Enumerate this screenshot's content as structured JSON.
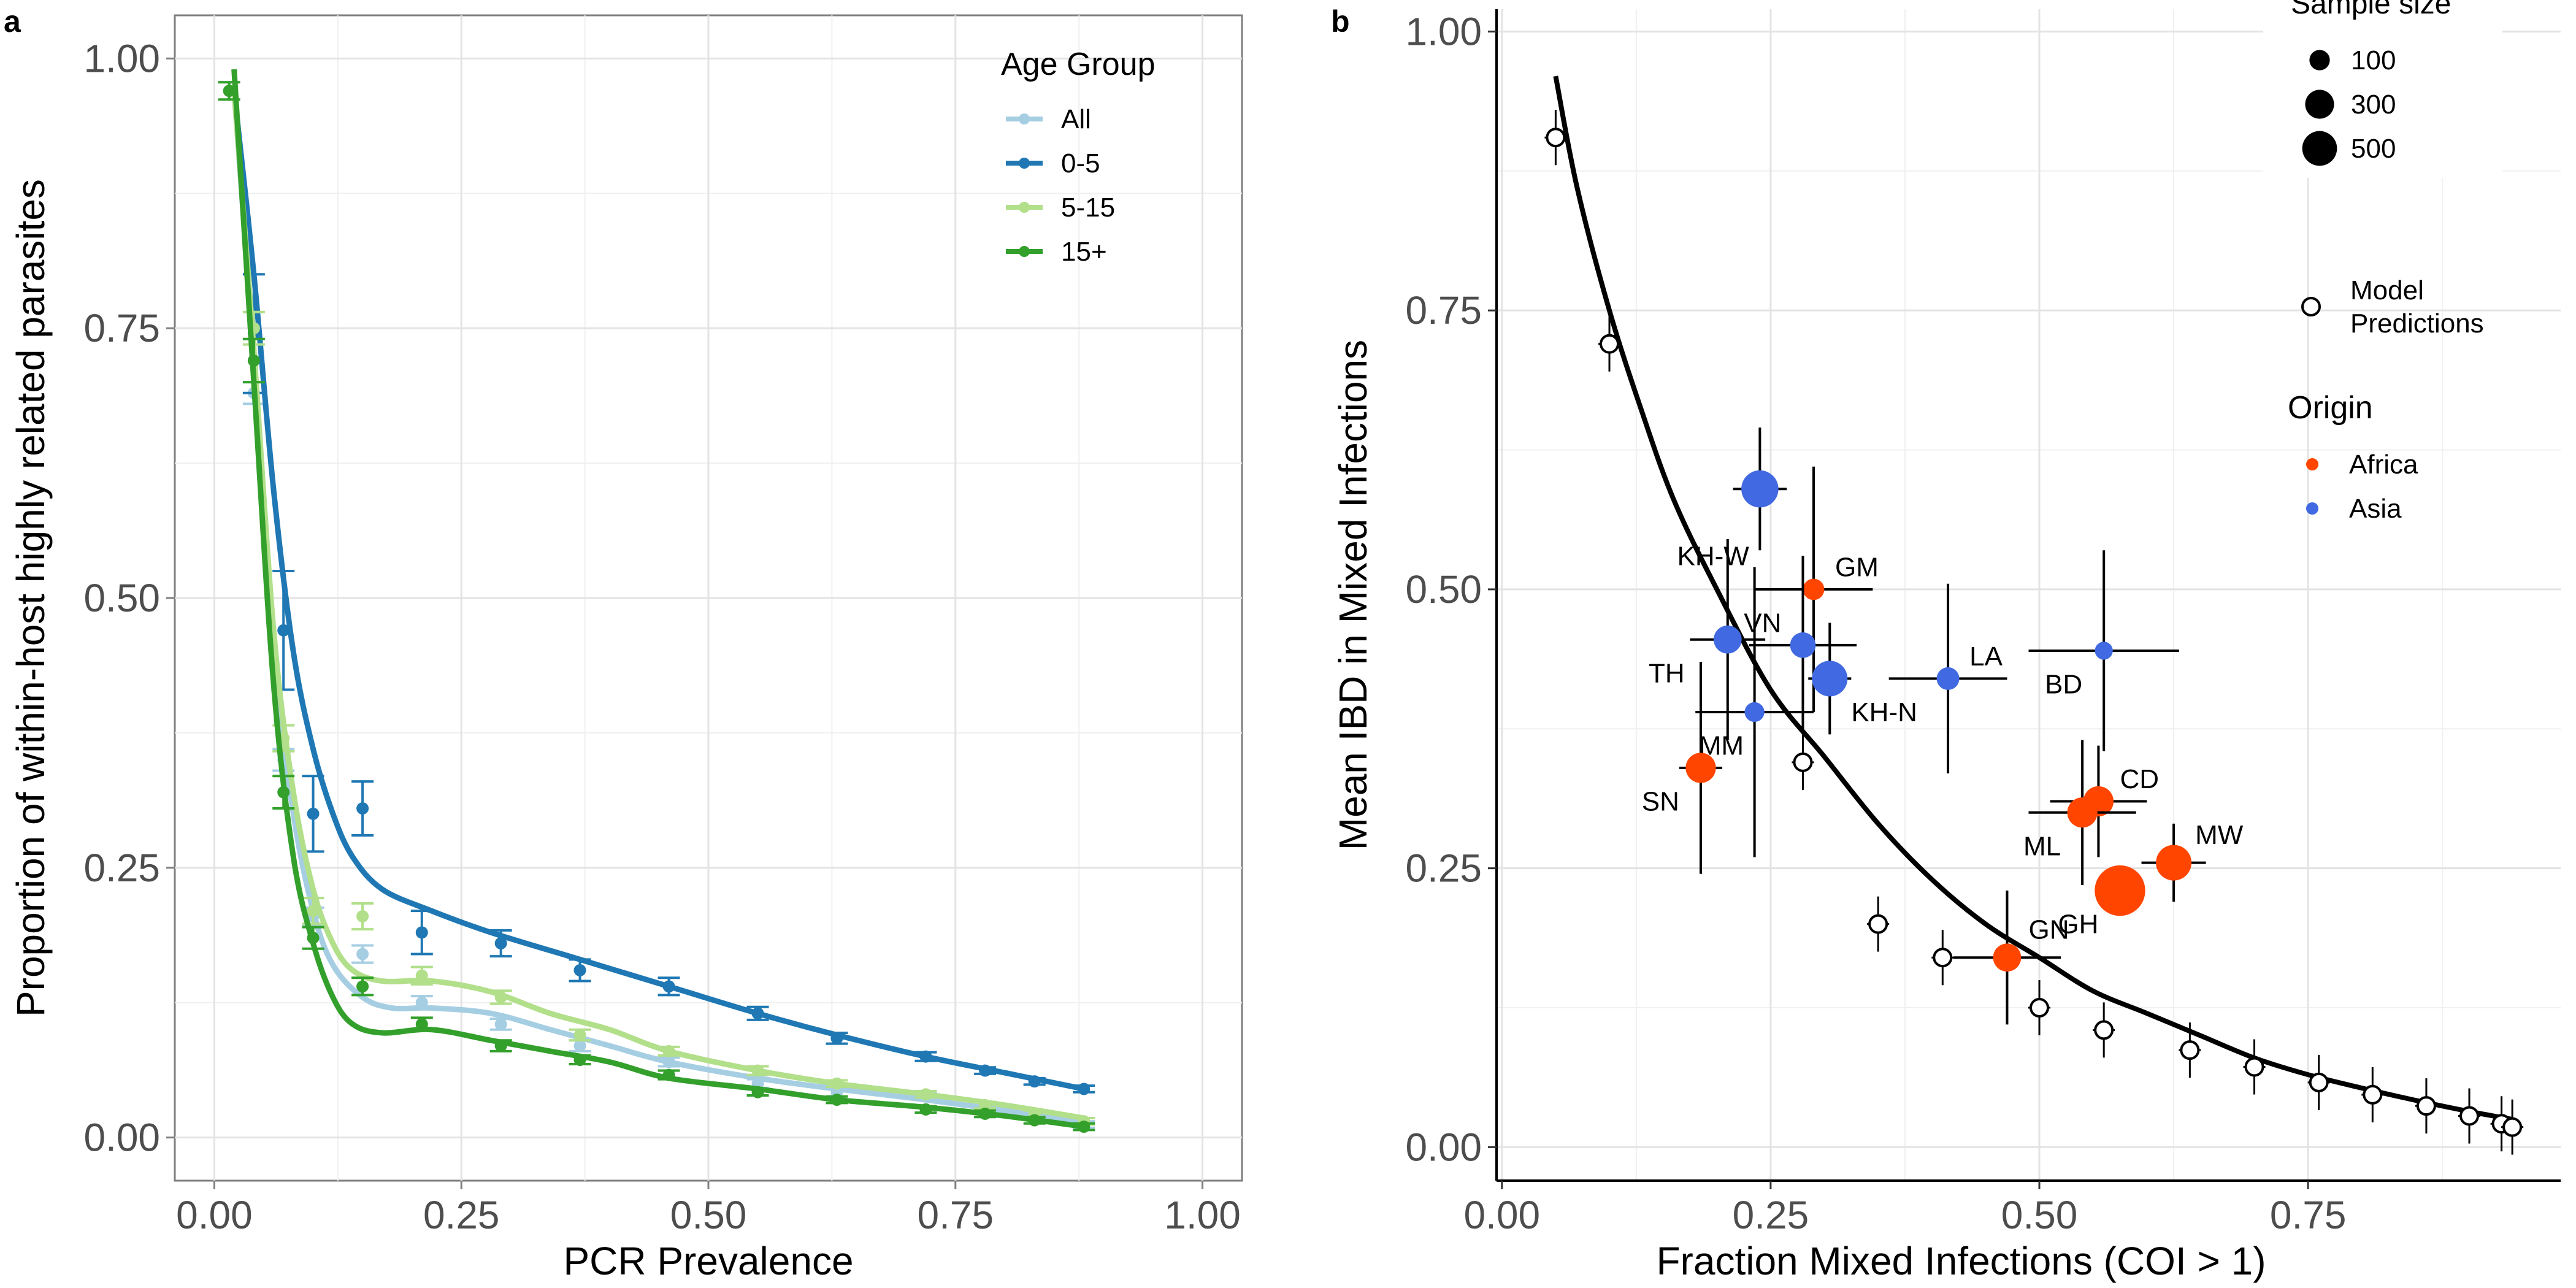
{
  "chart_data": [
    {
      "panel": "a",
      "type": "line",
      "xlabel": "PCR Prevalence",
      "ylabel": "Proportion of within-host highly related parasites",
      "xlim": [
        -0.04,
        1.04
      ],
      "ylim": [
        -0.04,
        1.04
      ],
      "xticks": [
        0,
        0.25,
        0.5,
        0.75,
        1
      ],
      "yticks": [
        0,
        0.25,
        0.5,
        0.75,
        1
      ],
      "xtick_labels": [
        "0.00",
        "0.25",
        "0.50",
        "0.75",
        "1.00"
      ],
      "ytick_labels": [
        "0.00",
        "0.25",
        "0.50",
        "0.75",
        "1.00"
      ],
      "grid": true,
      "legend": {
        "title": "Age Group",
        "position": "top-right"
      },
      "series": [
        {
          "name": "All",
          "color": "#a6cee3",
          "curve": [
            [
              0.02,
              0.97
            ],
            [
              0.04,
              0.72
            ],
            [
              0.06,
              0.45
            ],
            [
              0.08,
              0.3
            ],
            [
              0.1,
              0.21
            ],
            [
              0.12,
              0.16
            ],
            [
              0.15,
              0.13
            ],
            [
              0.18,
              0.12
            ],
            [
              0.22,
              0.12
            ],
            [
              0.28,
              0.115
            ],
            [
              0.34,
              0.1
            ],
            [
              0.4,
              0.085
            ],
            [
              0.46,
              0.07
            ],
            [
              0.55,
              0.055
            ],
            [
              0.63,
              0.045
            ],
            [
              0.72,
              0.035
            ],
            [
              0.8,
              0.025
            ],
            [
              0.88,
              0.015
            ]
          ],
          "points": [
            [
              0.04,
              0.69,
              0.01
            ],
            [
              0.07,
              0.35,
              0.01
            ],
            [
              0.1,
              0.205,
              0.008
            ],
            [
              0.15,
              0.17,
              0.008
            ],
            [
              0.21,
              0.125,
              0.006
            ],
            [
              0.29,
              0.105,
              0.005
            ],
            [
              0.37,
              0.085,
              0.005
            ],
            [
              0.46,
              0.07,
              0.004
            ],
            [
              0.55,
              0.05,
              0.004
            ],
            [
              0.63,
              0.042,
              0.004
            ],
            [
              0.72,
              0.038,
              0.003
            ],
            [
              0.78,
              0.026,
              0.003
            ],
            [
              0.83,
              0.02,
              0.003
            ],
            [
              0.88,
              0.012,
              0.003
            ]
          ]
        },
        {
          "name": "0-5",
          "color": "#1f78b4",
          "curve": [
            [
              0.02,
              0.97
            ],
            [
              0.04,
              0.8
            ],
            [
              0.06,
              0.6
            ],
            [
              0.08,
              0.45
            ],
            [
              0.1,
              0.36
            ],
            [
              0.12,
              0.3
            ],
            [
              0.14,
              0.26
            ],
            [
              0.17,
              0.23
            ],
            [
              0.22,
              0.21
            ],
            [
              0.28,
              0.19
            ],
            [
              0.37,
              0.165
            ],
            [
              0.46,
              0.14
            ],
            [
              0.55,
              0.115
            ],
            [
              0.63,
              0.095
            ],
            [
              0.72,
              0.075
            ],
            [
              0.8,
              0.06
            ],
            [
              0.88,
              0.045
            ]
          ],
          "points": [
            [
              0.04,
              0.745,
              0.055
            ],
            [
              0.07,
              0.47,
              0.055
            ],
            [
              0.1,
              0.3,
              0.035
            ],
            [
              0.15,
              0.305,
              0.025
            ],
            [
              0.21,
              0.19,
              0.02
            ],
            [
              0.29,
              0.18,
              0.012
            ],
            [
              0.37,
              0.155,
              0.01
            ],
            [
              0.46,
              0.14,
              0.008
            ],
            [
              0.55,
              0.115,
              0.006
            ],
            [
              0.63,
              0.092,
              0.005
            ],
            [
              0.72,
              0.075,
              0.004
            ],
            [
              0.78,
              0.062,
              0.003
            ],
            [
              0.83,
              0.052,
              0.003
            ],
            [
              0.88,
              0.045,
              0.003
            ]
          ]
        },
        {
          "name": "5-15",
          "color": "#b2df8a",
          "curve": [
            [
              0.02,
              0.97
            ],
            [
              0.04,
              0.73
            ],
            [
              0.06,
              0.47
            ],
            [
              0.08,
              0.32
            ],
            [
              0.1,
              0.23
            ],
            [
              0.12,
              0.18
            ],
            [
              0.14,
              0.155
            ],
            [
              0.17,
              0.145
            ],
            [
              0.22,
              0.145
            ],
            [
              0.28,
              0.135
            ],
            [
              0.34,
              0.115
            ],
            [
              0.4,
              0.1
            ],
            [
              0.46,
              0.08
            ],
            [
              0.55,
              0.062
            ],
            [
              0.63,
              0.05
            ],
            [
              0.72,
              0.04
            ],
            [
              0.8,
              0.03
            ],
            [
              0.88,
              0.018
            ]
          ],
          "points": [
            [
              0.04,
              0.75,
              0.015
            ],
            [
              0.07,
              0.37,
              0.012
            ],
            [
              0.1,
              0.21,
              0.012
            ],
            [
              0.15,
              0.205,
              0.012
            ],
            [
              0.21,
              0.15,
              0.008
            ],
            [
              0.29,
              0.13,
              0.006
            ],
            [
              0.37,
              0.095,
              0.005
            ],
            [
              0.46,
              0.08,
              0.004
            ],
            [
              0.55,
              0.062,
              0.004
            ],
            [
              0.63,
              0.05,
              0.003
            ],
            [
              0.72,
              0.04,
              0.003
            ],
            [
              0.78,
              0.03,
              0.003
            ],
            [
              0.83,
              0.022,
              0.003
            ],
            [
              0.88,
              0.015,
              0.003
            ]
          ]
        },
        {
          "name": "15+",
          "color": "#33a02c",
          "curve": [
            [
              0.02,
              0.99
            ],
            [
              0.04,
              0.7
            ],
            [
              0.06,
              0.42
            ],
            [
              0.08,
              0.26
            ],
            [
              0.1,
              0.18
            ],
            [
              0.12,
              0.13
            ],
            [
              0.14,
              0.105
            ],
            [
              0.17,
              0.097
            ],
            [
              0.22,
              0.1
            ],
            [
              0.28,
              0.09
            ],
            [
              0.34,
              0.08
            ],
            [
              0.4,
              0.07
            ],
            [
              0.46,
              0.055
            ],
            [
              0.55,
              0.045
            ],
            [
              0.63,
              0.035
            ],
            [
              0.72,
              0.028
            ],
            [
              0.8,
              0.02
            ],
            [
              0.88,
              0.01
            ]
          ],
          "points": [
            [
              0.015,
              0.97,
              0.008
            ],
            [
              0.04,
              0.72,
              0.02
            ],
            [
              0.07,
              0.32,
              0.015
            ],
            [
              0.1,
              0.185,
              0.01
            ],
            [
              0.15,
              0.14,
              0.008
            ],
            [
              0.21,
              0.105,
              0.006
            ],
            [
              0.29,
              0.085,
              0.005
            ],
            [
              0.37,
              0.072,
              0.004
            ],
            [
              0.46,
              0.058,
              0.004
            ],
            [
              0.55,
              0.042,
              0.003
            ],
            [
              0.63,
              0.035,
              0.003
            ],
            [
              0.72,
              0.026,
              0.003
            ],
            [
              0.78,
              0.022,
              0.003
            ],
            [
              0.83,
              0.016,
              0.003
            ],
            [
              0.88,
              0.01,
              0.003
            ]
          ]
        }
      ]
    },
    {
      "panel": "b",
      "type": "scatter",
      "xlabel": "Fraction Mixed Infections (COI > 1)",
      "ylabel": "Mean IBD in Mixed Infections",
      "xlim": [
        -0.005,
        0.985
      ],
      "ylim": [
        -0.03,
        1.02
      ],
      "xticks": [
        0,
        0.25,
        0.5,
        0.75
      ],
      "yticks": [
        0,
        0.25,
        0.5,
        0.75,
        1
      ],
      "xtick_labels": [
        "0.00",
        "0.25",
        "0.50",
        "0.75"
      ],
      "ytick_labels": [
        "0.00",
        "0.25",
        "0.50",
        "0.75",
        "1.00"
      ],
      "grid": true,
      "legend": {
        "position": "right",
        "size_title": "Sample size",
        "sizes": [
          {
            "label": "100",
            "value": 100
          },
          {
            "label": "300",
            "value": 300
          },
          {
            "label": "500",
            "value": 500
          }
        ],
        "model_label_line1": "Model",
        "model_label_line2": "Predictions",
        "origin_title": "Origin",
        "origins": [
          {
            "label": "Africa",
            "color": "#ff4500"
          },
          {
            "label": "Asia",
            "color": "#4169e1"
          }
        ]
      },
      "model_curve": [
        [
          0.05,
          0.96
        ],
        [
          0.07,
          0.86
        ],
        [
          0.1,
          0.75
        ],
        [
          0.13,
          0.66
        ],
        [
          0.16,
          0.58
        ],
        [
          0.2,
          0.5
        ],
        [
          0.25,
          0.41
        ],
        [
          0.3,
          0.35
        ],
        [
          0.35,
          0.29
        ],
        [
          0.4,
          0.24
        ],
        [
          0.45,
          0.2
        ],
        [
          0.5,
          0.17
        ],
        [
          0.55,
          0.14
        ],
        [
          0.6,
          0.12
        ],
        [
          0.65,
          0.1
        ],
        [
          0.7,
          0.08
        ],
        [
          0.75,
          0.065
        ],
        [
          0.8,
          0.053
        ],
        [
          0.85,
          0.042
        ],
        [
          0.9,
          0.032
        ],
        [
          0.94,
          0.025
        ]
      ],
      "model_points": [
        [
          0.05,
          0.905
        ],
        [
          0.1,
          0.72
        ],
        [
          0.28,
          0.345
        ],
        [
          0.35,
          0.2
        ],
        [
          0.41,
          0.17
        ],
        [
          0.5,
          0.125
        ],
        [
          0.56,
          0.105
        ],
        [
          0.64,
          0.087
        ],
        [
          0.7,
          0.072
        ],
        [
          0.76,
          0.058
        ],
        [
          0.81,
          0.047
        ],
        [
          0.86,
          0.037
        ],
        [
          0.9,
          0.028
        ],
        [
          0.93,
          0.021
        ],
        [
          0.94,
          0.018
        ]
      ],
      "points": [
        {
          "label": "KH-W",
          "x": 0.24,
          "y": 0.59,
          "xerr": 0.025,
          "yerr": 0.055,
          "n": 450,
          "origin": "Asia",
          "label_dx": -0.01,
          "label_dy": -0.06
        },
        {
          "label": "GM",
          "x": 0.29,
          "y": 0.5,
          "xerr": 0.055,
          "yerr": 0.11,
          "n": 80,
          "origin": "Africa",
          "label_dx": 0.02,
          "label_dy": 0.02
        },
        {
          "label": "TH",
          "x": 0.21,
          "y": 0.455,
          "xerr": 0.035,
          "yerr": 0.09,
          "n": 200,
          "origin": "Asia",
          "label_dx": -0.04,
          "label_dy": -0.03
        },
        {
          "label": "VN",
          "x": 0.28,
          "y": 0.45,
          "xerr": 0.05,
          "yerr": 0.08,
          "n": 150,
          "origin": "Asia",
          "label_dx": -0.02,
          "label_dy": 0.02
        },
        {
          "label": "KH-N",
          "x": 0.305,
          "y": 0.42,
          "xerr": 0.02,
          "yerr": 0.05,
          "n": 400,
          "origin": "Asia",
          "label_dx": 0.02,
          "label_dy": -0.03
        },
        {
          "label": "LA",
          "x": 0.415,
          "y": 0.42,
          "xerr": 0.055,
          "yerr": 0.085,
          "n": 100,
          "origin": "Asia",
          "label_dx": 0.02,
          "label_dy": 0.02
        },
        {
          "label": "BD",
          "x": 0.56,
          "y": 0.445,
          "xerr": 0.07,
          "yerr": 0.09,
          "n": 40,
          "origin": "Asia",
          "label_dx": -0.02,
          "label_dy": -0.03
        },
        {
          "label": "MM",
          "x": 0.235,
          "y": 0.39,
          "xerr": 0.055,
          "yerr": 0.13,
          "n": 60,
          "origin": "Asia",
          "label_dx": -0.01,
          "label_dy": -0.03
        },
        {
          "label": "SN",
          "x": 0.185,
          "y": 0.34,
          "xerr": 0.02,
          "yerr": 0.095,
          "n": 250,
          "origin": "Africa",
          "label_dx": -0.02,
          "label_dy": -0.03
        },
        {
          "label": "CD",
          "x": 0.555,
          "y": 0.31,
          "xerr": 0.045,
          "yerr": 0.05,
          "n": 250,
          "origin": "Africa",
          "label_dx": 0.02,
          "label_dy": 0.02
        },
        {
          "label": "ML",
          "x": 0.54,
          "y": 0.3,
          "xerr": 0.05,
          "yerr": 0.065,
          "n": 250,
          "origin": "Africa",
          "label_dx": -0.02,
          "label_dy": -0.03
        },
        {
          "label": "MW",
          "x": 0.625,
          "y": 0.255,
          "xerr": 0.03,
          "yerr": 0.035,
          "n": 400,
          "origin": "Africa",
          "label_dx": 0.02,
          "label_dy": 0.025
        },
        {
          "label": "GH",
          "x": 0.575,
          "y": 0.23,
          "xerr": 0.015,
          "yerr": 0.02,
          "n": 1000,
          "origin": "Africa",
          "label_dx": -0.02,
          "label_dy": -0.03
        },
        {
          "label": "GN",
          "x": 0.47,
          "y": 0.17,
          "xerr": 0.05,
          "yerr": 0.06,
          "n": 200,
          "origin": "Africa",
          "label_dx": 0.02,
          "label_dy": 0.025
        }
      ]
    }
  ]
}
